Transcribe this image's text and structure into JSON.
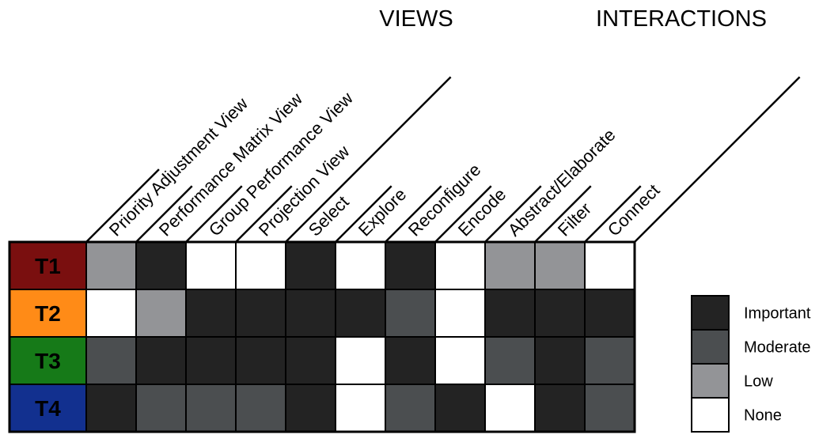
{
  "groups": {
    "views": "VIEWS",
    "interactions": "INTERACTIONS"
  },
  "columns": [
    "Priority Adjustment View",
    "Performance Matrix View",
    "Group Performance View",
    "Projection View",
    "Select",
    "Explore",
    "Reconfigure",
    "Encode",
    "Abstract/Elaborate",
    "Filter",
    "Connect"
  ],
  "rows": [
    {
      "label": "T1",
      "color": "#7a0f0f",
      "levels": [
        "low",
        "important",
        "none",
        "none",
        "important",
        "none",
        "important",
        "none",
        "low",
        "low",
        "none"
      ]
    },
    {
      "label": "T2",
      "color": "#ff8b17",
      "levels": [
        "none",
        "low",
        "important",
        "important",
        "important",
        "important",
        "moderate",
        "none",
        "important",
        "important",
        "important"
      ]
    },
    {
      "label": "T3",
      "color": "#167a18",
      "levels": [
        "moderate",
        "important",
        "important",
        "important",
        "important",
        "none",
        "important",
        "none",
        "moderate",
        "important",
        "moderate"
      ]
    },
    {
      "label": "T4",
      "color": "#12308f",
      "levels": [
        "important",
        "moderate",
        "moderate",
        "moderate",
        "important",
        "none",
        "moderate",
        "important",
        "none",
        "important",
        "moderate"
      ]
    }
  ],
  "legend": [
    {
      "key": "important",
      "label": "Important",
      "color": "#232323"
    },
    {
      "key": "moderate",
      "label": "Moderate",
      "color": "#4b4e50"
    },
    {
      "key": "low",
      "label": "Low",
      "color": "#939497"
    },
    {
      "key": "none",
      "label": "None",
      "color": "#ffffff"
    }
  ]
}
